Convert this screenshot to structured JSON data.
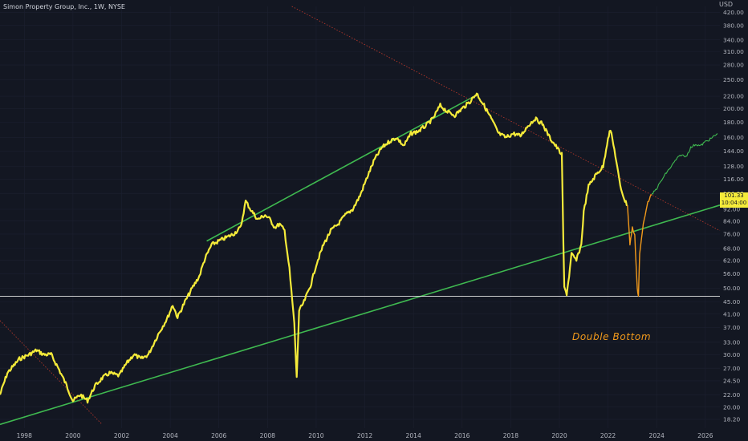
{
  "header": {
    "title": "Simon Property Group, Inc., 1W, NYSE"
  },
  "currency": "USD",
  "price_tag": {
    "price": "101.33",
    "countdown": "10:04:00"
  },
  "annotation": "Double Bottom",
  "colors": {
    "background": "#131722",
    "price": "#f5eb3a",
    "trend": "#3fb950",
    "orange": "#f29a1b",
    "projection": "#3fb950",
    "resistance": "#c0392b",
    "support": "#e6e6e6",
    "text": "#b2b5be"
  },
  "chart_data": {
    "type": "line",
    "y_scale": "log",
    "ylim": [
      17,
      440
    ],
    "xlim": [
      1997.0,
      2026.6
    ],
    "y_ticks": [
      "420.00",
      "380.00",
      "340.00",
      "310.00",
      "280.00",
      "250.00",
      "220.00",
      "200.00",
      "180.00",
      "160.00",
      "144.00",
      "128.00",
      "116.00",
      "104.00",
      "92.00",
      "84.00",
      "76.00",
      "68.00",
      "62.00",
      "56.00",
      "50.00",
      "45.00",
      "41.00",
      "37.00",
      "33.00",
      "30.00",
      "27.00",
      "24.50",
      "22.00",
      "20.00",
      "18.20"
    ],
    "x_ticks": [
      "1998",
      "2000",
      "2002",
      "2004",
      "2006",
      "2008",
      "2010",
      "2012",
      "2014",
      "2016",
      "2018",
      "2020",
      "2022",
      "2024",
      "2026"
    ],
    "series": [
      {
        "role": "price",
        "points": [
          [
            1997.0,
            22.0
          ],
          [
            1997.3,
            26
          ],
          [
            1997.8,
            29
          ],
          [
            1998.2,
            30
          ],
          [
            1998.5,
            31
          ],
          [
            1998.8,
            30
          ],
          [
            1999.1,
            30
          ],
          [
            1999.4,
            27
          ],
          [
            1999.7,
            24
          ],
          [
            2000.0,
            21
          ],
          [
            2000.3,
            22
          ],
          [
            2000.6,
            21
          ],
          [
            2000.9,
            23.5
          ],
          [
            2001.2,
            25
          ],
          [
            2001.5,
            26
          ],
          [
            2001.9,
            25.5
          ],
          [
            2002.2,
            28
          ],
          [
            2002.5,
            30
          ],
          [
            2002.8,
            29
          ],
          [
            2003.1,
            30
          ],
          [
            2003.5,
            35
          ],
          [
            2003.9,
            40
          ],
          [
            2004.1,
            44
          ],
          [
            2004.3,
            40
          ],
          [
            2004.6,
            45
          ],
          [
            2004.9,
            50
          ],
          [
            2005.2,
            55
          ],
          [
            2005.4,
            62
          ],
          [
            2005.7,
            70
          ],
          [
            2006.0,
            72
          ],
          [
            2006.3,
            74
          ],
          [
            2006.6,
            76
          ],
          [
            2006.9,
            80
          ],
          [
            2007.1,
            98
          ],
          [
            2007.3,
            92
          ],
          [
            2007.6,
            85
          ],
          [
            2007.9,
            88
          ],
          [
            2008.1,
            85
          ],
          [
            2008.3,
            80
          ],
          [
            2008.5,
            82
          ],
          [
            2008.7,
            78
          ],
          [
            2008.9,
            58
          ],
          [
            2009.1,
            38
          ],
          [
            2009.2,
            25
          ],
          [
            2009.3,
            42
          ],
          [
            2009.5,
            45
          ],
          [
            2009.8,
            52
          ],
          [
            2010.0,
            60
          ],
          [
            2010.3,
            70
          ],
          [
            2010.6,
            78
          ],
          [
            2010.9,
            82
          ],
          [
            2011.2,
            88
          ],
          [
            2011.5,
            92
          ],
          [
            2011.8,
            102
          ],
          [
            2012.1,
            118
          ],
          [
            2012.4,
            135
          ],
          [
            2012.7,
            148
          ],
          [
            2013.0,
            155
          ],
          [
            2013.3,
            160
          ],
          [
            2013.6,
            150
          ],
          [
            2013.9,
            165
          ],
          [
            2014.2,
            168
          ],
          [
            2014.5,
            175
          ],
          [
            2014.8,
            185
          ],
          [
            2015.1,
            205
          ],
          [
            2015.4,
            195
          ],
          [
            2015.7,
            190
          ],
          [
            2016.0,
            200
          ],
          [
            2016.3,
            210
          ],
          [
            2016.6,
            225
          ],
          [
            2016.9,
            205
          ],
          [
            2017.2,
            185
          ],
          [
            2017.5,
            165
          ],
          [
            2017.8,
            160
          ],
          [
            2018.1,
            165
          ],
          [
            2018.4,
            162
          ],
          [
            2018.7,
            175
          ],
          [
            2019.0,
            185
          ],
          [
            2019.3,
            178
          ],
          [
            2019.6,
            160
          ],
          [
            2019.9,
            148
          ],
          [
            2020.1,
            140
          ],
          [
            2020.2,
            50
          ],
          [
            2020.3,
            48
          ],
          [
            2020.4,
            55
          ],
          [
            2020.5,
            65
          ],
          [
            2020.7,
            62
          ],
          [
            2020.9,
            70
          ],
          [
            2021.0,
            90
          ],
          [
            2021.2,
            110
          ],
          [
            2021.5,
            120
          ],
          [
            2021.8,
            128
          ],
          [
            2022.0,
            160
          ],
          [
            2022.1,
            170
          ],
          [
            2022.3,
            140
          ],
          [
            2022.5,
            110
          ],
          [
            2022.7,
            98
          ],
          [
            2022.8,
            95
          ]
        ]
      },
      {
        "role": "orange",
        "points": [
          [
            2022.8,
            95
          ],
          [
            2022.9,
            70
          ],
          [
            2023.0,
            80
          ],
          [
            2023.1,
            75
          ],
          [
            2023.2,
            50
          ],
          [
            2023.25,
            47
          ],
          [
            2023.3,
            65
          ],
          [
            2023.45,
            82
          ],
          [
            2023.6,
            95
          ],
          [
            2023.7,
            100
          ],
          [
            2023.8,
            103
          ]
        ]
      },
      {
        "role": "projection",
        "points": [
          [
            2023.8,
            103
          ],
          [
            2024.0,
            108
          ],
          [
            2024.2,
            115
          ],
          [
            2024.4,
            122
          ],
          [
            2024.6,
            128
          ],
          [
            2024.8,
            135
          ],
          [
            2025.0,
            140
          ],
          [
            2025.2,
            138
          ],
          [
            2025.4,
            148
          ],
          [
            2025.6,
            152
          ],
          [
            2025.8,
            150
          ],
          [
            2026.0,
            155
          ],
          [
            2026.2,
            158
          ],
          [
            2026.5,
            165
          ]
        ]
      }
    ],
    "lines": [
      {
        "role": "support_trend",
        "from": [
          1997.0,
          17.5
        ],
        "to": [
          2026.6,
          95.0
        ]
      },
      {
        "role": "upper_trend",
        "from": [
          2005.5,
          72.0
        ],
        "to": [
          2016.5,
          220.0
        ]
      },
      {
        "role": "resistance_dotted",
        "from": [
          2009.0,
          440.0
        ],
        "to": [
          2026.6,
          78.0
        ]
      },
      {
        "role": "resistance_dotted",
        "from": [
          1997.0,
          39.0
        ],
        "to": [
          2001.2,
          17.5
        ]
      },
      {
        "role": "horizontal",
        "y": 47.0
      }
    ]
  }
}
